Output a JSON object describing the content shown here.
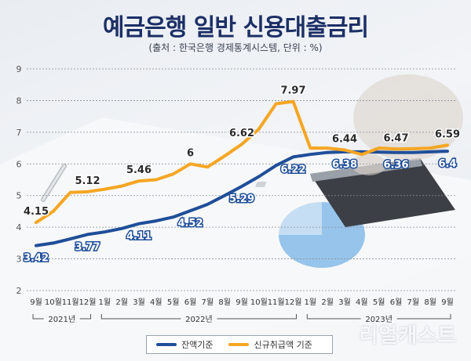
{
  "title": "예금은행 일반 신용대출금리",
  "subtitle": "(출처 : 한국은행 경제통계시스템, 단위 : %)",
  "watermark": "리얼캐스트",
  "colors": {
    "balance": "#1f4e99",
    "new": "#f5a623",
    "grid": "#8a8f99",
    "label_balance": "#ffffff",
    "label_new": "#2a2a2a"
  },
  "chart_data": {
    "type": "line",
    "categories": [
      "9월",
      "10월",
      "11월",
      "12월",
      "1월",
      "2월",
      "3월",
      "4월",
      "5월",
      "6월",
      "7월",
      "8월",
      "9월",
      "10월",
      "11월",
      "12월",
      "1월",
      "2월",
      "3월",
      "4월",
      "5월",
      "6월",
      "7월",
      "8월",
      "9월"
    ],
    "year_groups": [
      {
        "label": "2021년",
        "start": 0,
        "end": 3
      },
      {
        "label": "2022년",
        "start": 4,
        "end": 15
      },
      {
        "label": "2023년",
        "start": 16,
        "end": 24
      }
    ],
    "ylim": [
      2,
      9
    ],
    "yticks": [
      2,
      3,
      4,
      5,
      6,
      7,
      8,
      9
    ],
    "series": [
      {
        "name": "잔액기준",
        "values": [
          3.42,
          3.5,
          3.63,
          3.77,
          3.85,
          3.96,
          4.11,
          4.2,
          4.32,
          4.52,
          4.72,
          5.0,
          5.29,
          5.6,
          5.95,
          6.22,
          6.3,
          6.36,
          6.38,
          6.38,
          6.37,
          6.36,
          6.36,
          6.38,
          6.4
        ],
        "labels": [
          {
            "i": 0,
            "text": "3.42"
          },
          {
            "i": 3,
            "text": "3.77"
          },
          {
            "i": 6,
            "text": "4.11"
          },
          {
            "i": 9,
            "text": "4.52"
          },
          {
            "i": 12,
            "text": "5.29"
          },
          {
            "i": 15,
            "text": "6.22"
          },
          {
            "i": 18,
            "text": "6.38"
          },
          {
            "i": 21,
            "text": "6.36"
          },
          {
            "i": 24,
            "text": "6.4"
          }
        ]
      },
      {
        "name": "신규취급액 기준",
        "values": [
          4.15,
          4.5,
          5.1,
          5.12,
          5.2,
          5.3,
          5.46,
          5.5,
          5.68,
          6.0,
          5.9,
          6.25,
          6.62,
          7.1,
          7.9,
          7.97,
          6.5,
          6.5,
          6.44,
          6.3,
          6.5,
          6.47,
          6.48,
          6.5,
          6.59
        ],
        "labels": [
          {
            "i": 0,
            "text": "4.15"
          },
          {
            "i": 3,
            "text": "5.12"
          },
          {
            "i": 6,
            "text": "5.46"
          },
          {
            "i": 9,
            "text": "6"
          },
          {
            "i": 12,
            "text": "6.62"
          },
          {
            "i": 15,
            "text": "7.97"
          },
          {
            "i": 18,
            "text": "6.44"
          },
          {
            "i": 21,
            "text": "6.47"
          },
          {
            "i": 24,
            "text": "6.59"
          }
        ]
      }
    ],
    "legend": [
      "잔액기준",
      "신규취급액 기준"
    ],
    "legend_position": "bottom",
    "grid": true
  }
}
